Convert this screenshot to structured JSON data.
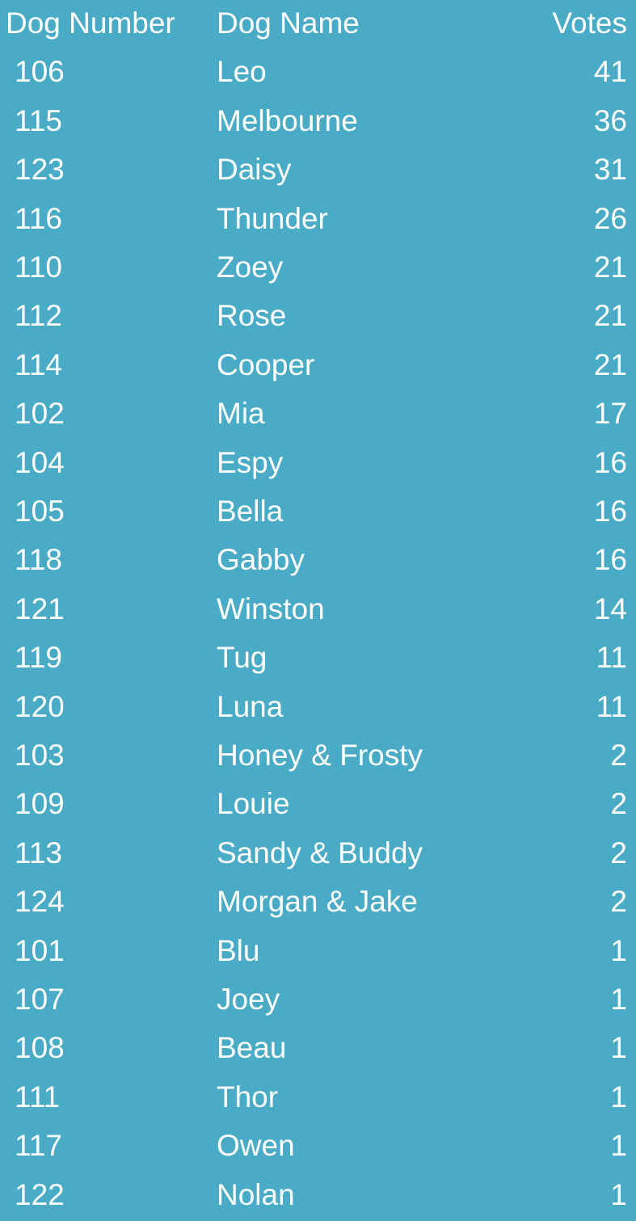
{
  "background_color": "#4aabc6",
  "text_color": "#ffffff",
  "table": {
    "headers": [
      "Dog Number",
      "Dog Name",
      "Votes"
    ],
    "rows": [
      [
        "106",
        "Leo",
        "41"
      ],
      [
        "115",
        "Melbourne",
        "36"
      ],
      [
        "123",
        "Daisy",
        "31"
      ],
      [
        "116",
        "Thunder",
        "26"
      ],
      [
        "110",
        "Zoey",
        "21"
      ],
      [
        "112",
        "Rose",
        "21"
      ],
      [
        "114",
        "Cooper",
        "21"
      ],
      [
        "102",
        "Mia",
        "17"
      ],
      [
        "104",
        "Espy",
        "16"
      ],
      [
        "105",
        "Bella",
        "16"
      ],
      [
        "118",
        "Gabby",
        "16"
      ],
      [
        "121",
        "Winston",
        "14"
      ],
      [
        "119",
        "Tug",
        "11"
      ],
      [
        "120",
        "Luna",
        "11"
      ],
      [
        "103",
        "Honey & Frosty",
        "2"
      ],
      [
        "109",
        "Louie",
        "2"
      ],
      [
        "113",
        "Sandy & Buddy",
        "2"
      ],
      [
        "124",
        "Morgan & Jake",
        "2"
      ],
      [
        "101",
        "Blu",
        "1"
      ],
      [
        "107",
        "Joey",
        "1"
      ],
      [
        "108",
        "Beau",
        "1"
      ],
      [
        "111",
        "Thor",
        "1"
      ],
      [
        "117",
        "Owen",
        "1"
      ],
      [
        "122",
        "Nolan",
        "1"
      ]
    ]
  }
}
